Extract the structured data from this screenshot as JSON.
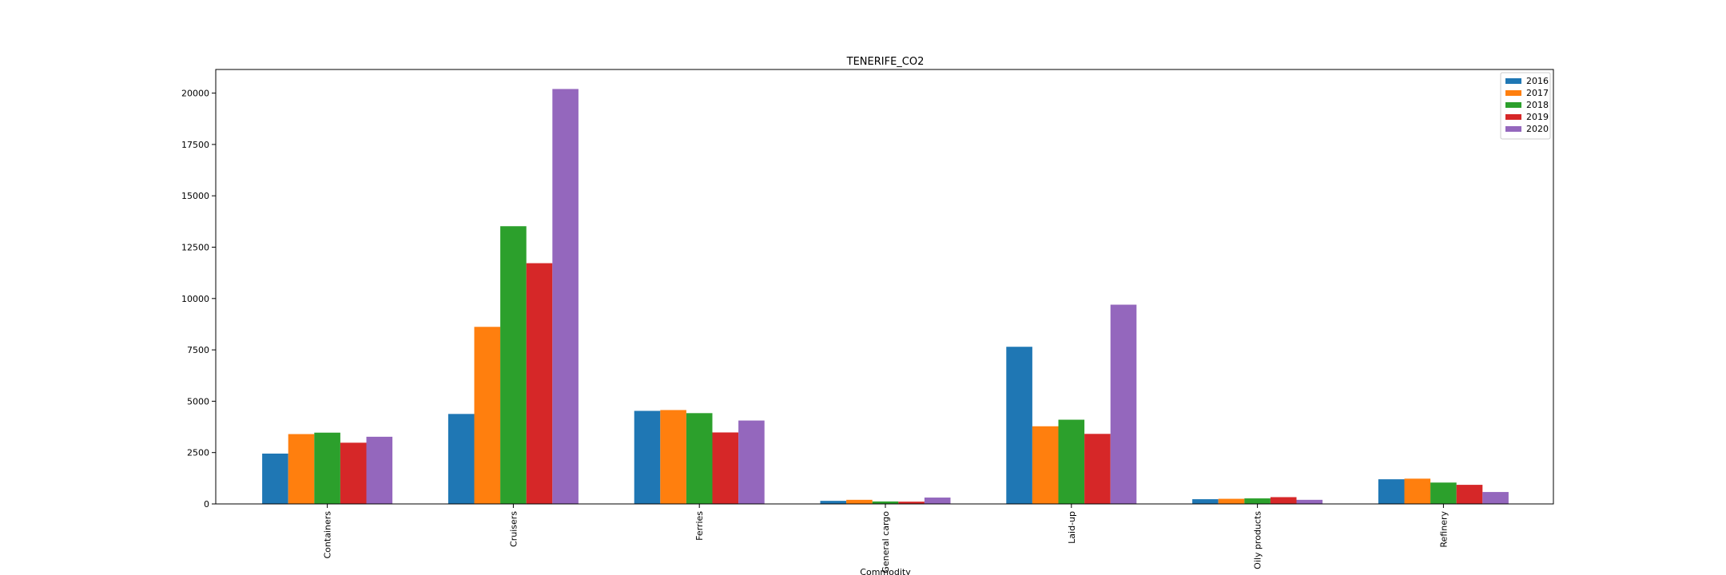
{
  "chart_data": {
    "type": "bar",
    "title": "TENERIFE_CO2",
    "xlabel": "Commodity",
    "ylabel": "",
    "categories": [
      "Containers",
      "Cruisers",
      "Ferries",
      "General cargo",
      "Laid-up",
      "Oily products",
      "Refinery"
    ],
    "series": [
      {
        "name": "2016",
        "color": "#1f77b4",
        "values": [
          2450,
          4380,
          4530,
          150,
          7650,
          230,
          1200
        ]
      },
      {
        "name": "2017",
        "color": "#ff7f0e",
        "values": [
          3400,
          8620,
          4570,
          200,
          3780,
          250,
          1230
        ]
      },
      {
        "name": "2018",
        "color": "#2ca02c",
        "values": [
          3470,
          13520,
          4420,
          120,
          4100,
          270,
          1040
        ]
      },
      {
        "name": "2019",
        "color": "#d62728",
        "values": [
          2980,
          11720,
          3480,
          110,
          3410,
          330,
          930
        ]
      },
      {
        "name": "2020",
        "color": "#9467bd",
        "values": [
          3270,
          20200,
          4060,
          310,
          9700,
          200,
          580
        ]
      }
    ],
    "ylim": [
      0,
      21150
    ],
    "yticks": [
      0,
      2500,
      5000,
      7500,
      10000,
      12500,
      15000,
      17500,
      20000
    ],
    "ytick_labels": [
      "0",
      "2500",
      "5000",
      "7500",
      "10000",
      "12500",
      "15000",
      "17500",
      "20000"
    ],
    "grid": false,
    "legend_placement": "top-right"
  }
}
